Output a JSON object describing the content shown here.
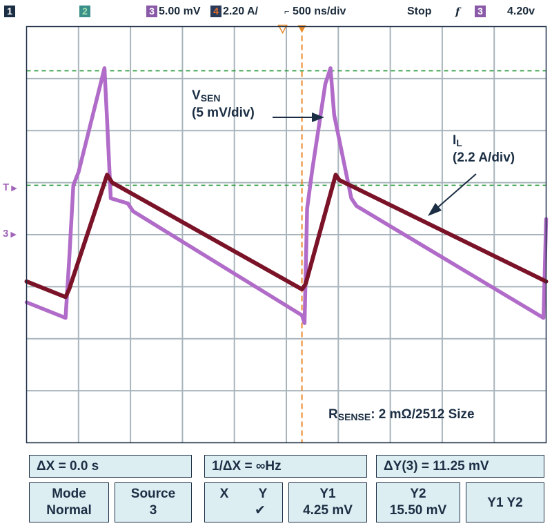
{
  "header": {
    "ch1": "1",
    "ch2": "2",
    "ch3_num": "3",
    "ch3_scale": "5.00 mV",
    "ch4_num": "4",
    "ch4_scale": "2.20 A/",
    "timebase": "500 ns/div",
    "state": "Stop",
    "trigger_slope": "f",
    "trigger_source": "3",
    "trigger_level": "4.20v"
  },
  "side_markers": {
    "trigger": "T",
    "ch3": "3"
  },
  "colors": {
    "vsen": "#b06cc8",
    "il": "#7a1228",
    "grid": "#a8b4bc",
    "cursor": "#e8892a",
    "hcursor": "#2a9a3a",
    "panel_bg": "#ddeef3",
    "text": "#1b2e43"
  },
  "chart_data": {
    "type": "line",
    "xlim": [
      0,
      10
    ],
    "ylim": [
      0,
      8
    ],
    "x_unit": "div",
    "y_unit": "div",
    "annotations": {
      "vsen": {
        "main": "V",
        "sub": "SEN",
        "scale": "(5 mV/div)"
      },
      "il": {
        "main": "I",
        "sub": "L",
        "scale": "(2.2 A/div)"
      },
      "rsense": {
        "main": "R",
        "sub": "SENSE",
        "tail": ": 2 mΩ/2512 Size"
      }
    },
    "series": [
      {
        "x": [
          0,
          0.75,
          0.82,
          0.9,
          1.0,
          1.5,
          1.55,
          1.62,
          1.95,
          2.05,
          5.3,
          5.35,
          5.4,
          5.5,
          5.75,
          5.85,
          5.92,
          6.25,
          6.35,
          9.95,
          10.0
        ],
        "y": [
          2.7,
          2.4,
          3.5,
          4.95,
          5.2,
          7.2,
          6.2,
          4.7,
          4.6,
          4.45,
          2.45,
          2.3,
          4.5,
          5.25,
          6.9,
          7.2,
          6.3,
          4.7,
          4.55,
          2.4,
          4.3
        ]
      },
      {
        "x": [
          0,
          0.75,
          0.82,
          1.55,
          1.65,
          5.3,
          5.37,
          5.95,
          6.02,
          10.0
        ],
        "y": [
          3.1,
          2.8,
          2.95,
          5.15,
          5.0,
          2.95,
          3.05,
          5.15,
          5.05,
          3.1
        ]
      }
    ],
    "cursor_x_div": 5.3,
    "cursor_y_div": [
      7.15,
      4.95
    ]
  },
  "readout": {
    "dx": "ΔX = 0.0 s",
    "inv_dx": "1/ΔX = ∞Hz",
    "dy": "ΔY(3) = 11.25 mV",
    "mode_label": "Mode",
    "mode_value": "Normal",
    "source_label": "Source",
    "source_value": "3",
    "x_label": "X",
    "y_label": "Y",
    "y_check": "✔",
    "y1_label": "Y1",
    "y1_value": "4.25 mV",
    "y2_label": "Y2",
    "y2_value": "15.50 mV",
    "y1y2_label": "Y1 Y2"
  }
}
